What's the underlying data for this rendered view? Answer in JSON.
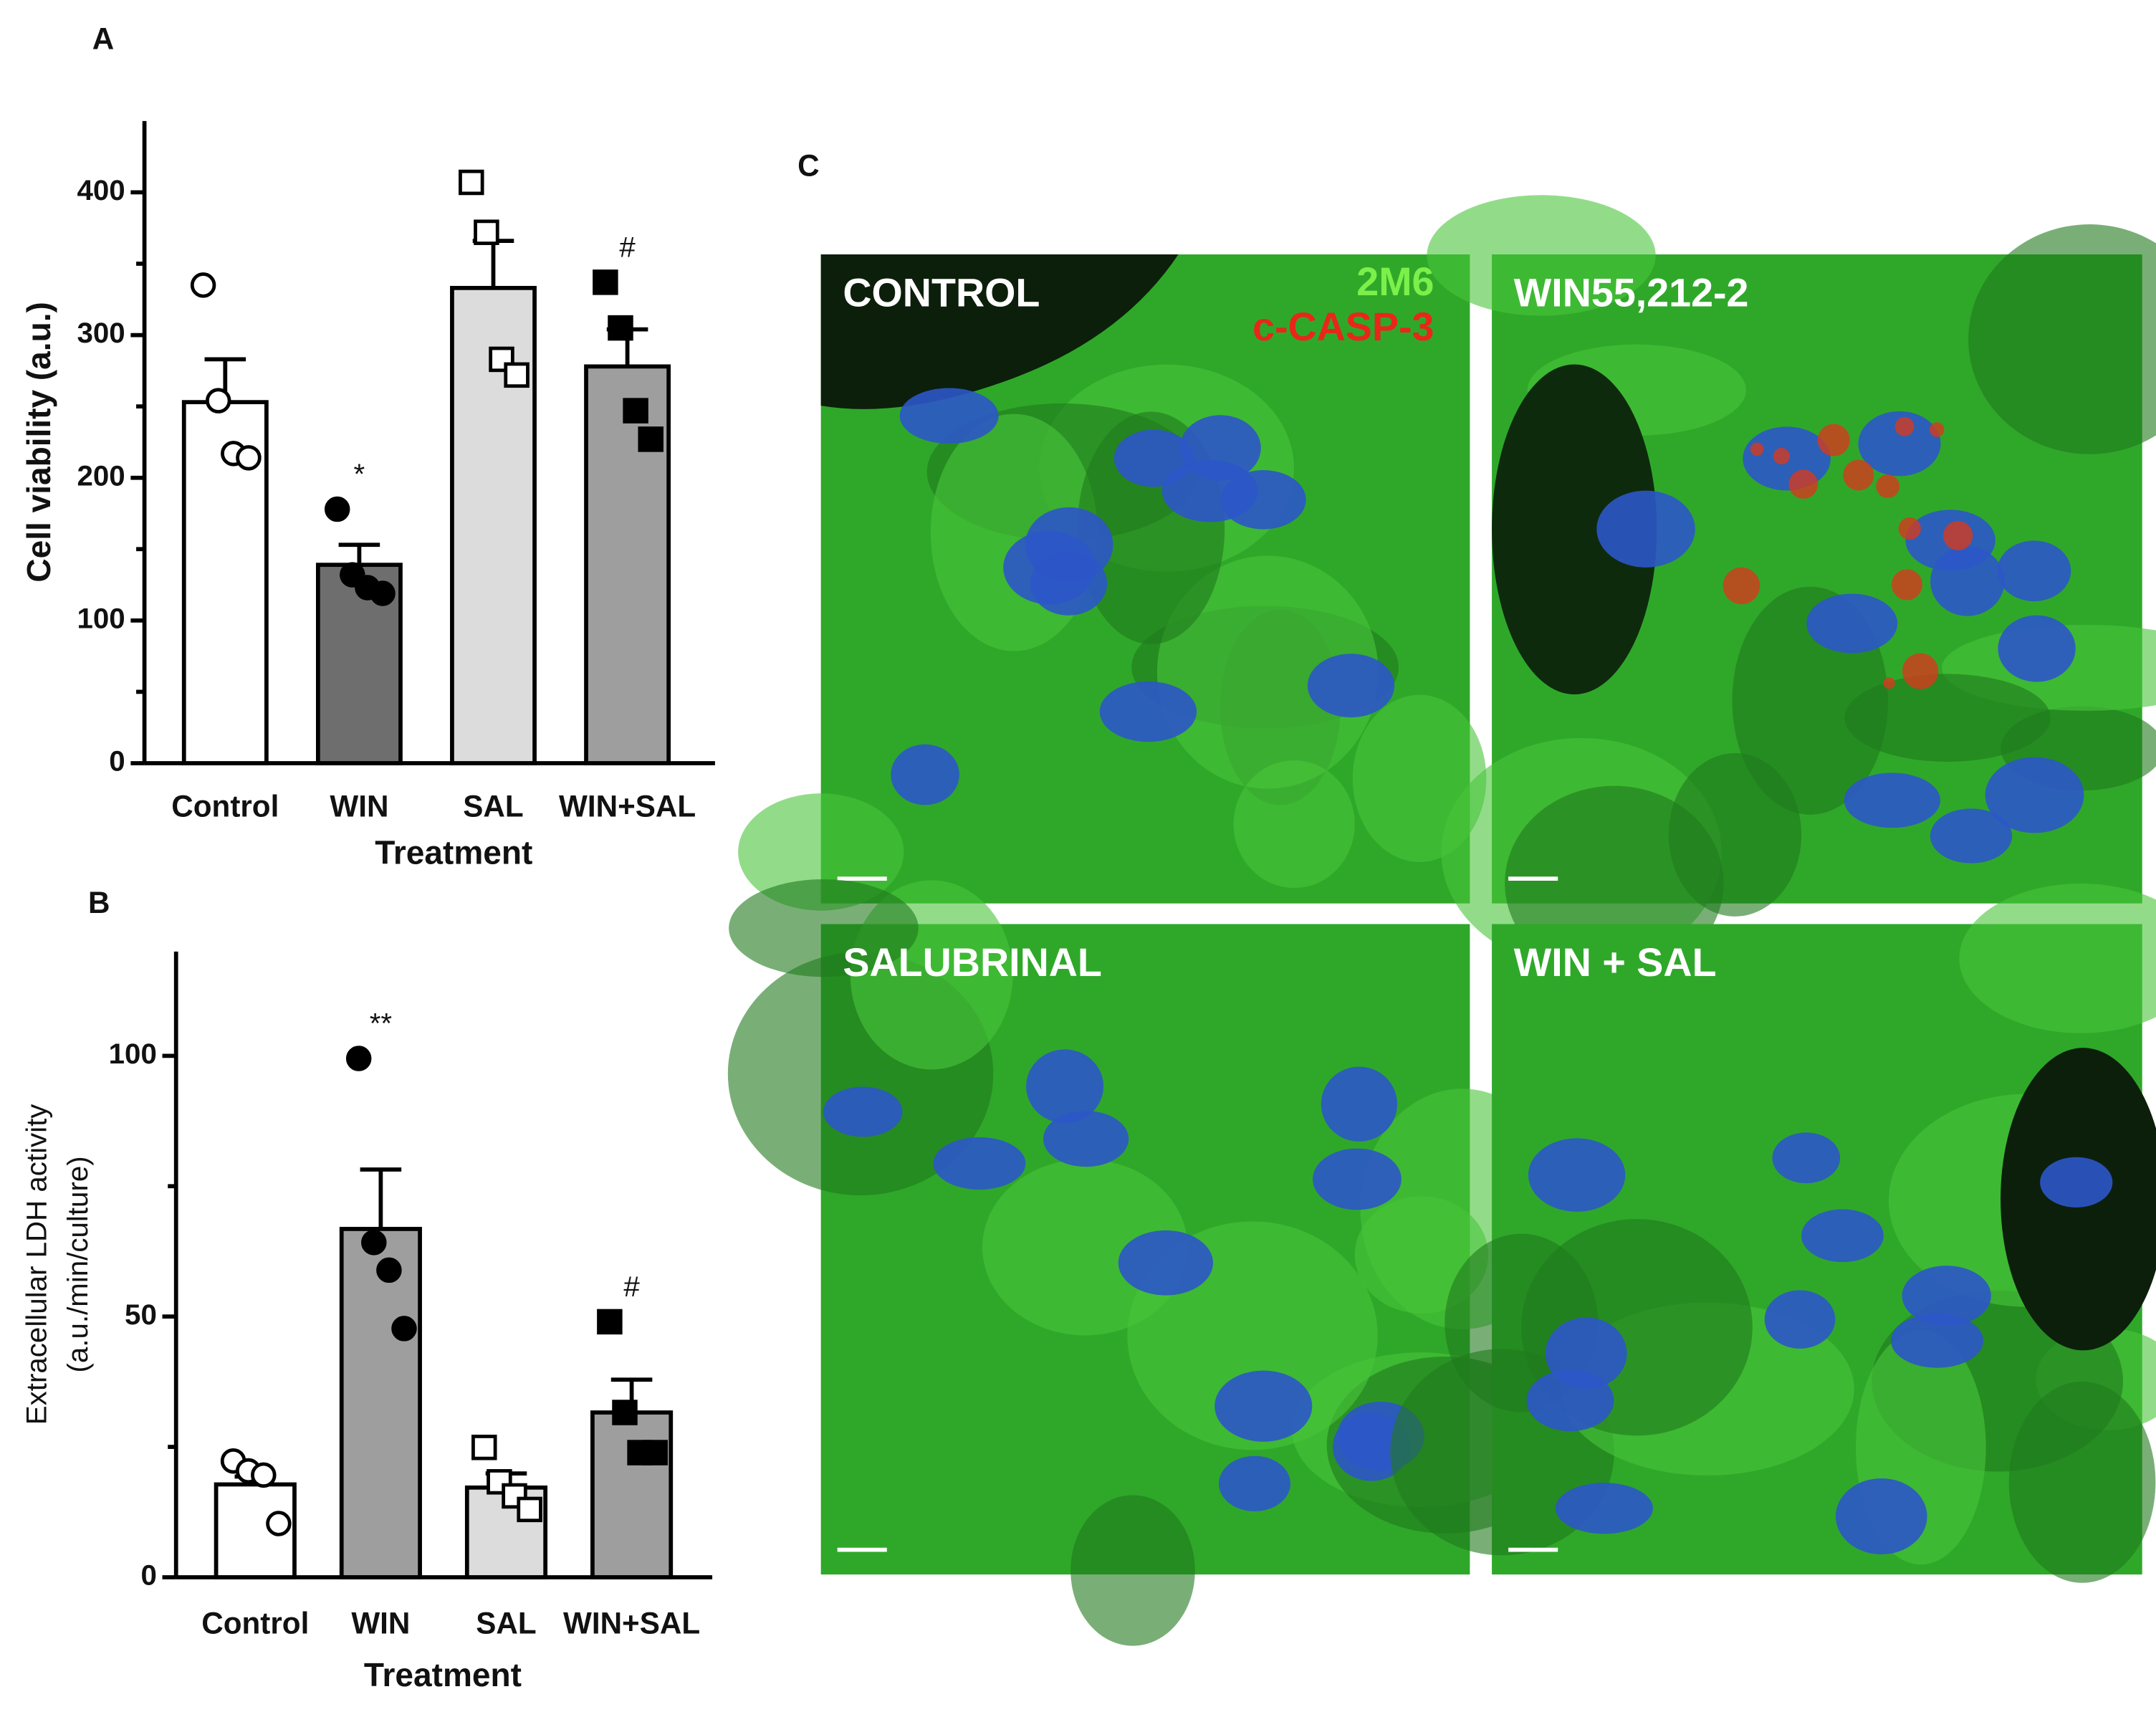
{
  "chart_data": [
    {
      "type": "bar",
      "panel": "A",
      "ylabel": "Cell viability (a.u.)",
      "xlabel": "Treatment",
      "categories": [
        "Control",
        "WIN",
        "SAL",
        "WIN+SAL"
      ],
      "values": [
        253,
        139,
        333,
        278
      ],
      "errors": [
        30,
        14,
        33,
        26
      ],
      "points": [
        [
          335,
          254,
          217,
          214
        ],
        [
          178,
          132,
          123,
          119
        ],
        [
          407,
          372,
          283,
          272
        ],
        [
          337,
          305,
          247,
          227
        ]
      ],
      "markers": [
        "open-circle",
        "filled-circle",
        "open-square",
        "filled-square"
      ],
      "colors": [
        "#ffffff",
        "#6e6e6e",
        "#dcdcdc",
        "#9e9e9e"
      ],
      "annotations": [
        null,
        "*",
        null,
        "#"
      ],
      "ylim": [
        0,
        450
      ],
      "yticks": [
        0,
        100,
        200,
        300,
        400
      ],
      "yminorticks": [
        50,
        150,
        250,
        350
      ]
    },
    {
      "type": "bar",
      "panel": "B",
      "ylabel": [
        "Extracellular LDH activity",
        "(a.u./min/culture)"
      ],
      "xlabel": "Treatment",
      "categories": [
        "Control",
        "WIN",
        "SAL",
        "WIN+SAL"
      ],
      "values": [
        17.8,
        66.8,
        17.2,
        31.6
      ],
      "errors": [
        1.5,
        11.4,
        2.7,
        6.3
      ],
      "points": [
        [
          22.3,
          20.4,
          19.6,
          10.3
        ],
        [
          99.5,
          64.2,
          58.9,
          47.7
        ],
        [
          24.9,
          18.3,
          15.6,
          13
        ],
        [
          49,
          31.6,
          23.9,
          23.9
        ]
      ],
      "markers": [
        "open-circle",
        "filled-circle",
        "open-square",
        "filled-square"
      ],
      "colors": [
        "#ffffff",
        "#9e9e9e",
        "#dcdcdc",
        "#9e9e9e"
      ],
      "annotations": [
        null,
        "**",
        null,
        "#"
      ],
      "ylim": [
        0,
        120
      ],
      "yticks": [
        0,
        50,
        100
      ],
      "yminorticks": [
        25,
        75
      ]
    }
  ],
  "micrographs": {
    "panel": "C",
    "labels": [
      "CONTROL",
      "WIN55,212-2",
      "SALUBRINAL",
      "WIN + SAL"
    ],
    "stains": [
      "2M6",
      "c-CASP-3"
    ]
  }
}
